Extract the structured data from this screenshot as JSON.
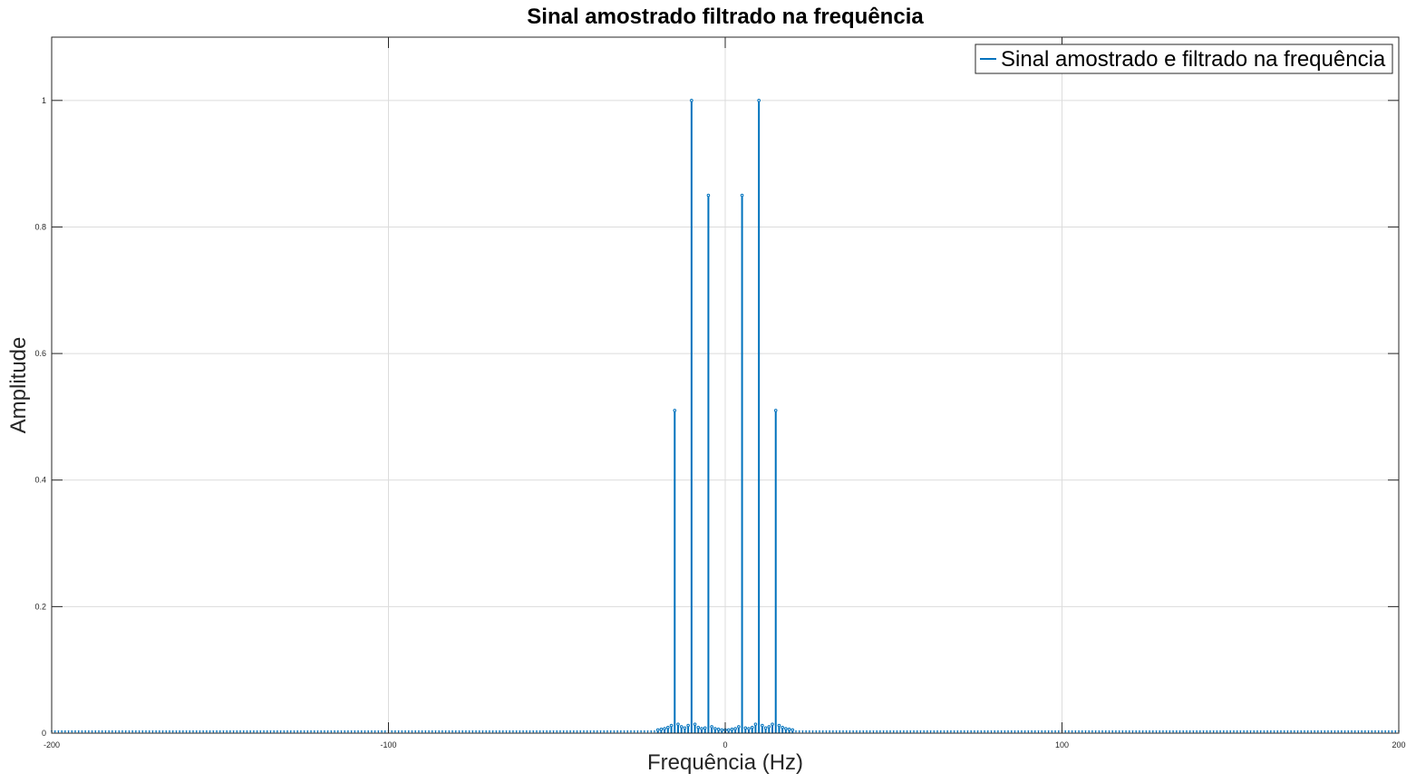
{
  "chart_data": {
    "type": "stem",
    "title": "Sinal amostrado filtrado na frequência",
    "xlabel": "Frequência (Hz)",
    "ylabel": "Amplitude",
    "xlim": [
      -200,
      200
    ],
    "ylim": [
      0,
      1.1
    ],
    "xticks": [
      -200,
      -100,
      0,
      100,
      200
    ],
    "xtick_labels": [
      "-200",
      "-100",
      "0",
      "100",
      "200"
    ],
    "yticks": [
      0,
      0.2,
      0.4,
      0.6,
      0.8,
      1
    ],
    "ytick_labels": [
      "0",
      "0.2",
      "0.4",
      "0.6",
      "0.8",
      "1"
    ],
    "grid": true,
    "legend_position": "top-right",
    "series_color": "#0072bd",
    "series": [
      {
        "name": "Sinal amostrado e filtrado na frequência",
        "points": [
          {
            "x": -15,
            "y": 0.51
          },
          {
            "x": -10,
            "y": 1.0
          },
          {
            "x": -5,
            "y": 0.85
          },
          {
            "x": 5,
            "y": 0.85
          },
          {
            "x": 10,
            "y": 1.0
          },
          {
            "x": 15,
            "y": 0.51
          },
          {
            "x": -20,
            "y": 0.003
          },
          {
            "x": -19,
            "y": 0.004
          },
          {
            "x": -18,
            "y": 0.005
          },
          {
            "x": -17,
            "y": 0.007
          },
          {
            "x": -16,
            "y": 0.01
          },
          {
            "x": -14,
            "y": 0.012
          },
          {
            "x": -13,
            "y": 0.008
          },
          {
            "x": -12,
            "y": 0.006
          },
          {
            "x": -11,
            "y": 0.01
          },
          {
            "x": -9,
            "y": 0.012
          },
          {
            "x": -8,
            "y": 0.007
          },
          {
            "x": -7,
            "y": 0.005
          },
          {
            "x": -6,
            "y": 0.006
          },
          {
            "x": -4,
            "y": 0.008
          },
          {
            "x": -3,
            "y": 0.005
          },
          {
            "x": -2,
            "y": 0.004
          },
          {
            "x": -1,
            "y": 0.003
          },
          {
            "x": 0,
            "y": 0.003
          },
          {
            "x": 1,
            "y": 0.003
          },
          {
            "x": 2,
            "y": 0.004
          },
          {
            "x": 3,
            "y": 0.005
          },
          {
            "x": 4,
            "y": 0.008
          },
          {
            "x": 6,
            "y": 0.006
          },
          {
            "x": 7,
            "y": 0.005
          },
          {
            "x": 8,
            "y": 0.007
          },
          {
            "x": 9,
            "y": 0.012
          },
          {
            "x": 11,
            "y": 0.01
          },
          {
            "x": 12,
            "y": 0.006
          },
          {
            "x": 13,
            "y": 0.008
          },
          {
            "x": 14,
            "y": 0.012
          },
          {
            "x": 16,
            "y": 0.01
          },
          {
            "x": 17,
            "y": 0.007
          },
          {
            "x": 18,
            "y": 0.005
          },
          {
            "x": 19,
            "y": 0.004
          },
          {
            "x": 20,
            "y": 0.003
          }
        ],
        "baseline_range": [
          -200,
          200
        ],
        "baseline_step": 1,
        "baseline_value": 0.001
      }
    ]
  }
}
